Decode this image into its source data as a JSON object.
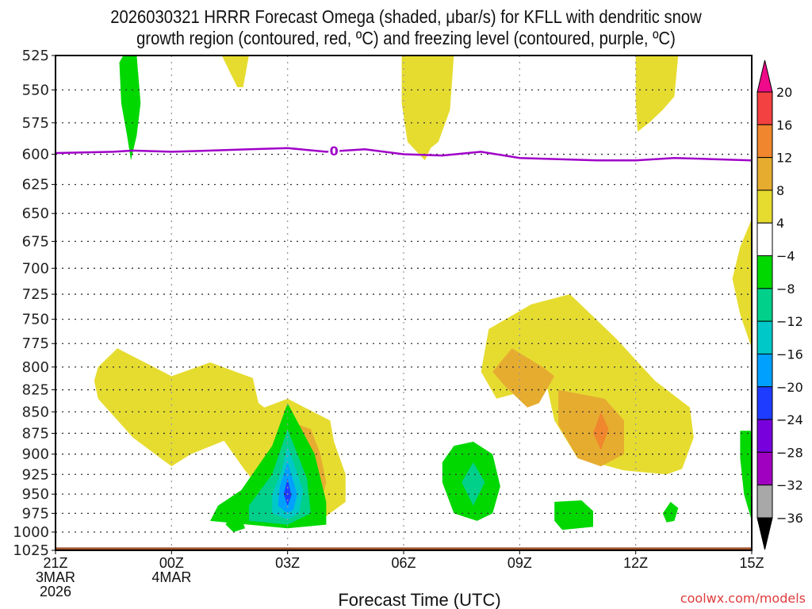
{
  "chart_data": {
    "type": "heatmap",
    "title_lines": [
      "2026030321 HRRR Forecast Omega (shaded, μbar/s) for KFLL with dendritic snow",
      "growth region (contoured, red, ºC) and freezing level (contoured, purple, ºC)"
    ],
    "xlabel": "Forecast Time (UTC)",
    "ylabel": "",
    "credit": "coolwx.com/models",
    "x_ticks": [
      {
        "hour": 0,
        "lines": [
          "21Z",
          "3MAR",
          "2026"
        ]
      },
      {
        "hour": 3,
        "lines": [
          "00Z",
          "4MAR"
        ]
      },
      {
        "hour": 6,
        "lines": [
          "03Z"
        ]
      },
      {
        "hour": 9,
        "lines": [
          "06Z"
        ]
      },
      {
        "hour": 12,
        "lines": [
          "09Z"
        ]
      },
      {
        "hour": 15,
        "lines": [
          "12Z"
        ]
      },
      {
        "hour": 18,
        "lines": [
          "15Z"
        ]
      }
    ],
    "xlim_hours": [
      0,
      18
    ],
    "y_ticks": [
      525,
      550,
      575,
      600,
      625,
      650,
      675,
      700,
      725,
      750,
      775,
      800,
      825,
      850,
      875,
      900,
      925,
      950,
      975,
      1000,
      1025
    ],
    "ylim_hpa": [
      525,
      1025
    ],
    "y_scale": "log-pressure (inverted)",
    "grid": true,
    "colorbar": {
      "placement": "right",
      "labels": [
        20,
        16,
        12,
        8,
        4,
        -4,
        -8,
        -12,
        -16,
        -20,
        -24,
        -28,
        -32,
        -36
      ],
      "bins": [
        {
          "range": ">20",
          "color": "#ee0a8a"
        },
        {
          "range": "16 to 20",
          "color": "#f34040"
        },
        {
          "range": "12 to 16",
          "color": "#f0862e"
        },
        {
          "range": "8 to 12",
          "color": "#e6ac30"
        },
        {
          "range": "4 to 8",
          "color": "#e6dc30"
        },
        {
          "range": "-4 to 4",
          "color": "#ffffff"
        },
        {
          "range": "-8 to -4",
          "color": "#00d800"
        },
        {
          "range": "-12 to -8",
          "color": "#00d08a"
        },
        {
          "range": "-16 to -12",
          "color": "#00c8c8"
        },
        {
          "range": "-20 to -16",
          "color": "#00a0ff"
        },
        {
          "range": "-24 to -20",
          "color": "#1e3cff"
        },
        {
          "range": "-28 to -24",
          "color": "#7800dc"
        },
        {
          "range": "-32 to -28",
          "color": "#a000c0"
        },
        {
          "range": "-36 to -32",
          "color": "#a8a8a8"
        },
        {
          "range": "<-36",
          "color": "#000000"
        }
      ]
    },
    "freezing_level": {
      "label": "0",
      "color": "#a000c8",
      "points_hour_hpa": [
        [
          0,
          599
        ],
        [
          1.5,
          598
        ],
        [
          2,
          597
        ],
        [
          3,
          598
        ],
        [
          4,
          597
        ],
        [
          5,
          596
        ],
        [
          6,
          595
        ],
        [
          7,
          598
        ],
        [
          8,
          596
        ],
        [
          9,
          600
        ],
        [
          10,
          601
        ],
        [
          11,
          598
        ],
        [
          12,
          603
        ],
        [
          13,
          604
        ],
        [
          14,
          605
        ],
        [
          15,
          605
        ],
        [
          16,
          603
        ],
        [
          17,
          604
        ],
        [
          18,
          605
        ]
      ]
    },
    "terrain": {
      "color": "#a0522d",
      "top_hpa": 1021
    },
    "omega_regions": [
      {
        "bin": "-8 to -4",
        "hour_hpa": [
          [
            1.75,
            525
          ],
          [
            2.1,
            525
          ],
          [
            2.2,
            560
          ],
          [
            2.1,
            585
          ],
          [
            1.95,
            605
          ],
          [
            1.85,
            585
          ],
          [
            1.7,
            560
          ],
          [
            1.65,
            530
          ]
        ]
      },
      {
        "bin": "4 to 8",
        "hour_hpa": [
          [
            4.3,
            525
          ],
          [
            5.0,
            525
          ],
          [
            4.85,
            548
          ],
          [
            4.7,
            548
          ]
        ]
      },
      {
        "bin": "4 to 8",
        "hour_hpa": [
          [
            8.95,
            525
          ],
          [
            10.3,
            525
          ],
          [
            10.2,
            565
          ],
          [
            9.9,
            590
          ],
          [
            9.7,
            595
          ],
          [
            9.55,
            605
          ],
          [
            9.1,
            590
          ],
          [
            8.95,
            560
          ]
        ]
      },
      {
        "bin": "4 to 8",
        "hour_hpa": [
          [
            15.0,
            525
          ],
          [
            16.1,
            525
          ],
          [
            16.0,
            555
          ],
          [
            15.7,
            565
          ],
          [
            15.35,
            575
          ],
          [
            15.05,
            582
          ],
          [
            15.0,
            560
          ]
        ]
      },
      {
        "bin": "4 to 8",
        "hour_hpa": [
          [
            18.0,
            655
          ],
          [
            18.0,
            780
          ],
          [
            17.7,
            745
          ],
          [
            17.5,
            710
          ],
          [
            17.7,
            680
          ]
        ]
      },
      {
        "bin": "4 to 8",
        "hour_hpa": [
          [
            1.1,
            800
          ],
          [
            1.6,
            780
          ],
          [
            3.0,
            810
          ],
          [
            4.0,
            795
          ],
          [
            5.1,
            812
          ],
          [
            5.3,
            850
          ],
          [
            5.1,
            870
          ],
          [
            4.3,
            885
          ],
          [
            3.5,
            900
          ],
          [
            3.0,
            915
          ],
          [
            2.0,
            880
          ],
          [
            1.1,
            835
          ],
          [
            1.0,
            815
          ]
        ]
      },
      {
        "bin": "4 to 8",
        "hour_hpa": [
          [
            4.2,
            800
          ],
          [
            4.5,
            815
          ],
          [
            5.4,
            845
          ],
          [
            6.0,
            835
          ],
          [
            7.1,
            860
          ],
          [
            7.2,
            885
          ],
          [
            7.5,
            925
          ],
          [
            7.5,
            960
          ],
          [
            6.7,
            990
          ],
          [
            6.4,
            975
          ],
          [
            5.5,
            955
          ],
          [
            4.9,
            920
          ],
          [
            4.3,
            880
          ],
          [
            4.1,
            840
          ]
        ]
      },
      {
        "bin": "8 to 12",
        "hour_hpa": [
          [
            6.0,
            860
          ],
          [
            6.6,
            870
          ],
          [
            6.85,
            900
          ],
          [
            7.0,
            935
          ],
          [
            6.85,
            965
          ],
          [
            6.6,
            975
          ],
          [
            6.2,
            960
          ],
          [
            5.8,
            925
          ],
          [
            5.85,
            895
          ]
        ]
      },
      {
        "bin": "12 to 16",
        "hour_hpa": [
          [
            6.0,
            880
          ],
          [
            6.4,
            900
          ],
          [
            6.6,
            930
          ],
          [
            6.5,
            955
          ],
          [
            6.1,
            962
          ],
          [
            5.95,
            930
          ],
          [
            5.85,
            905
          ]
        ]
      },
      {
        "bin": "16 to 20",
        "hour_hpa": [
          [
            6.0,
            912
          ],
          [
            6.1,
            930
          ],
          [
            6.0,
            945
          ],
          [
            5.95,
            930
          ]
        ]
      },
      {
        "bin": "4 to 8",
        "hour_hpa": [
          [
            13.3,
            725
          ],
          [
            14.5,
            770
          ],
          [
            15.5,
            815
          ],
          [
            16.4,
            845
          ],
          [
            16.5,
            880
          ],
          [
            16.2,
            918
          ],
          [
            15.8,
            925
          ],
          [
            14.7,
            920
          ],
          [
            13.5,
            905
          ],
          [
            12.9,
            860
          ],
          [
            12.7,
            820
          ],
          [
            11.4,
            835
          ],
          [
            11.0,
            805
          ],
          [
            11.2,
            760
          ],
          [
            12.3,
            735
          ]
        ]
      },
      {
        "bin": "8 to 12",
        "hour_hpa": [
          [
            11.8,
            780
          ],
          [
            12.6,
            800
          ],
          [
            12.9,
            810
          ],
          [
            12.5,
            840
          ],
          [
            12.2,
            845
          ],
          [
            11.6,
            820
          ],
          [
            11.3,
            805
          ]
        ]
      },
      {
        "bin": "8 to 12",
        "hour_hpa": [
          [
            13.0,
            825
          ],
          [
            14.2,
            835
          ],
          [
            14.7,
            860
          ],
          [
            14.7,
            900
          ],
          [
            14.1,
            915
          ],
          [
            13.5,
            905
          ],
          [
            13.0,
            865
          ]
        ]
      },
      {
        "bin": "12 to 16",
        "hour_hpa": [
          [
            14.1,
            850
          ],
          [
            14.3,
            870
          ],
          [
            14.1,
            895
          ],
          [
            13.9,
            875
          ]
        ]
      },
      {
        "bin": "-8 to -4",
        "hour_hpa": [
          [
            6.0,
            840
          ],
          [
            6.7,
            900
          ],
          [
            7.0,
            960
          ],
          [
            7.0,
            990
          ],
          [
            6.0,
            995
          ],
          [
            5.0,
            990
          ],
          [
            4.0,
            985
          ],
          [
            4.2,
            965
          ],
          [
            4.8,
            945
          ],
          [
            5.6,
            890
          ]
        ]
      },
      {
        "bin": "-12 to -8",
        "hour_hpa": [
          [
            6.0,
            870
          ],
          [
            6.5,
            930
          ],
          [
            6.6,
            975
          ],
          [
            6.0,
            990
          ],
          [
            5.0,
            985
          ],
          [
            5.0,
            965
          ],
          [
            5.6,
            925
          ]
        ]
      },
      {
        "bin": "-16 to -12",
        "hour_hpa": [
          [
            6.0,
            890
          ],
          [
            6.4,
            945
          ],
          [
            6.3,
            975
          ],
          [
            6.0,
            983
          ],
          [
            5.6,
            975
          ],
          [
            5.6,
            950
          ],
          [
            5.85,
            920
          ]
        ]
      },
      {
        "bin": "-20 to -16",
        "hour_hpa": [
          [
            6.0,
            910
          ],
          [
            6.25,
            950
          ],
          [
            6.15,
            970
          ],
          [
            6.0,
            975
          ],
          [
            5.75,
            965
          ],
          [
            5.8,
            940
          ]
        ]
      },
      {
        "bin": "-24 to -20",
        "hour_hpa": [
          [
            6.0,
            930
          ],
          [
            6.1,
            952
          ],
          [
            6.0,
            965
          ],
          [
            5.9,
            950
          ]
        ]
      },
      {
        "bin": "-8 to -4",
        "hour_hpa": [
          [
            4.6,
            970
          ],
          [
            4.8,
            980
          ],
          [
            4.9,
            995
          ],
          [
            4.6,
            1000
          ],
          [
            4.4,
            990
          ]
        ]
      },
      {
        "bin": "-8 to -4",
        "hour_hpa": [
          [
            10.8,
            885
          ],
          [
            11.3,
            900
          ],
          [
            11.5,
            940
          ],
          [
            11.3,
            975
          ],
          [
            10.9,
            985
          ],
          [
            10.3,
            975
          ],
          [
            10.0,
            935
          ],
          [
            10.0,
            910
          ],
          [
            10.3,
            890
          ]
        ]
      },
      {
        "bin": "-12 to -8",
        "hour_hpa": [
          [
            10.8,
            910
          ],
          [
            11.1,
            935
          ],
          [
            10.8,
            965
          ],
          [
            10.5,
            935
          ]
        ]
      },
      {
        "bin": "-8 to -4",
        "hour_hpa": [
          [
            12.9,
            960
          ],
          [
            13.6,
            958
          ],
          [
            13.9,
            972
          ],
          [
            13.9,
            993
          ],
          [
            13.1,
            997
          ],
          [
            12.9,
            985
          ]
        ]
      },
      {
        "bin": "-8 to -4",
        "hour_hpa": [
          [
            15.9,
            960
          ],
          [
            16.1,
            968
          ],
          [
            16.0,
            985
          ],
          [
            15.8,
            987
          ],
          [
            15.7,
            975
          ]
        ]
      },
      {
        "bin": "-8 to -4",
        "hour_hpa": [
          [
            17.7,
            872
          ],
          [
            18.0,
            872
          ],
          [
            18.0,
            985
          ],
          [
            17.8,
            950
          ],
          [
            17.7,
            905
          ]
        ]
      }
    ]
  }
}
